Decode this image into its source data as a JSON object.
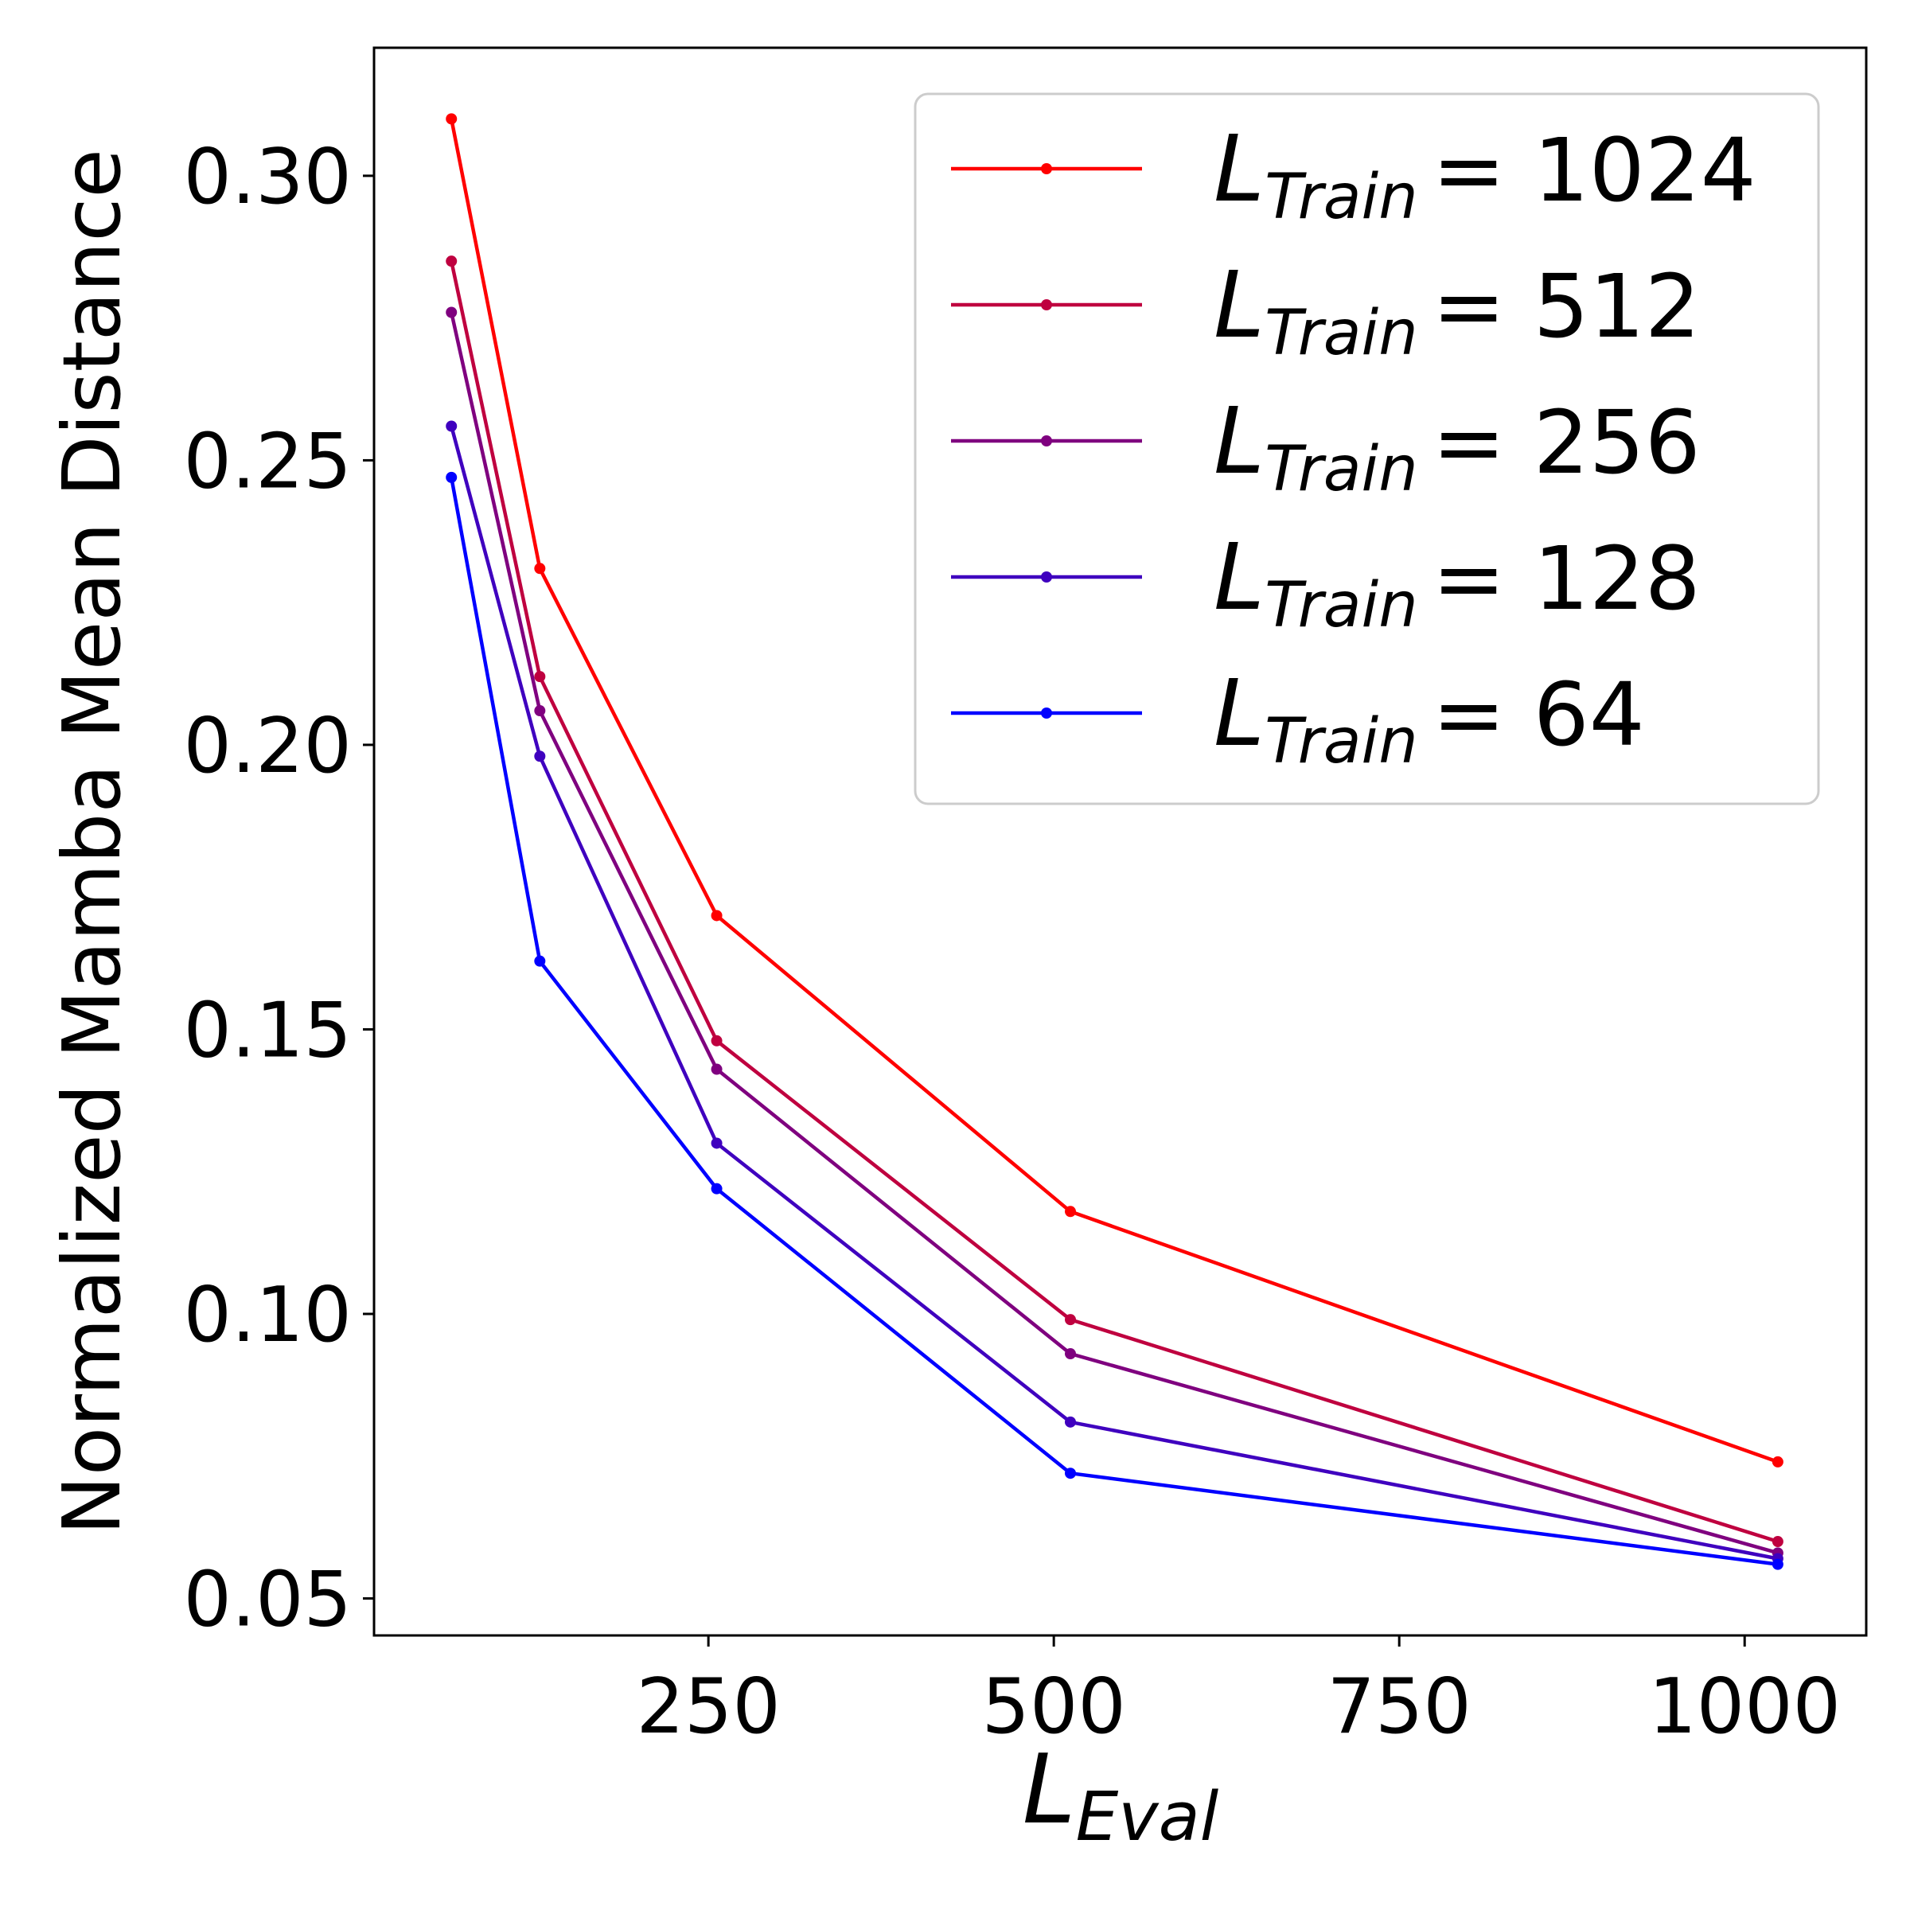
{
  "chart_data": {
    "type": "line",
    "title": "",
    "xlabel": {
      "main": "L",
      "sub": "Eval"
    },
    "ylabel": "Normalized Mamba Mean Distance",
    "xlim": [
      8,
      1088
    ],
    "ylim": [
      0.0435,
      0.3225
    ],
    "xticks": [
      250,
      500,
      750,
      1000
    ],
    "xtick_labels": [
      "250",
      "500",
      "750",
      "1000"
    ],
    "yticks": [
      0.05,
      0.1,
      0.15,
      0.2,
      0.25,
      0.3
    ],
    "ytick_labels": [
      "0.05",
      "0.10",
      "0.15",
      "0.20",
      "0.25",
      "0.30"
    ],
    "legend_position": "top-right",
    "x": [
      64,
      128,
      256,
      512,
      1024
    ],
    "series": [
      {
        "name": "L_Train = 1024",
        "label_main": "L",
        "label_sub": "Train",
        "label_value": "= 1024",
        "color": "#ff0000",
        "values": [
          0.31,
          0.231,
          0.17,
          0.118,
          0.074
        ]
      },
      {
        "name": "L_Train = 512",
        "label_main": "L",
        "label_sub": "Train",
        "label_value": "= 512",
        "color": "#bf003f",
        "values": [
          0.285,
          0.212,
          0.148,
          0.099,
          0.06
        ]
      },
      {
        "name": "L_Train = 256",
        "label_main": "L",
        "label_sub": "Train",
        "label_value": "= 256",
        "color": "#7f007f",
        "values": [
          0.276,
          0.206,
          0.143,
          0.093,
          0.058
        ]
      },
      {
        "name": "L_Train = 128",
        "label_main": "L",
        "label_sub": "Train",
        "label_value": "= 128",
        "color": "#3f00bf",
        "values": [
          0.256,
          0.198,
          0.13,
          0.081,
          0.057
        ]
      },
      {
        "name": "L_Train = 64",
        "label_main": "L",
        "label_sub": "Train",
        "label_value": "= 64",
        "color": "#0000ff",
        "values": [
          0.247,
          0.162,
          0.122,
          0.072,
          0.056
        ]
      }
    ]
  }
}
